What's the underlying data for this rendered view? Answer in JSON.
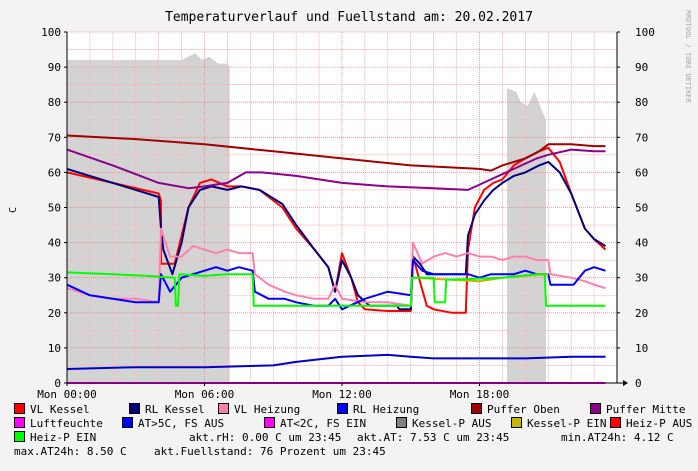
{
  "chart_data": {
    "type": "line",
    "title": "Temperaturverlauf und Fuellstand am: 20.02.2017",
    "ylabel": "C",
    "watermark": "RRDTOOL / TOBI OETIKER",
    "ylim": [
      0,
      100
    ],
    "xlim": [
      0,
      24
    ],
    "y_ticks": [
      "0",
      "10",
      "20",
      "30",
      "40",
      "50",
      "60",
      "70",
      "80",
      "90",
      "100"
    ],
    "x_ticks": [
      {
        "t": 0,
        "label": "Mon 00:00"
      },
      {
        "t": 6,
        "label": "Mon 06:00"
      },
      {
        "t": 12,
        "label": "Mon 12:00"
      },
      {
        "t": 18,
        "label": "Mon 18:00"
      }
    ],
    "grid": true,
    "legend_placement": "bottom",
    "series": [
      {
        "name": "Fuellstand",
        "color": "#d3d3d3",
        "style": "area",
        "points": [
          [
            0,
            92
          ],
          [
            5,
            92
          ],
          [
            5.3,
            93
          ],
          [
            5.6,
            94
          ],
          [
            5.9,
            92
          ],
          [
            6.2,
            93
          ],
          [
            6.6,
            91
          ],
          [
            7.0,
            91
          ],
          [
            7.1,
            90
          ],
          [
            7.1,
            0
          ],
          [
            19.2,
            0
          ],
          [
            19.2,
            84
          ],
          [
            19.6,
            83
          ],
          [
            19.8,
            80
          ],
          [
            20.1,
            79
          ],
          [
            20.4,
            83
          ],
          [
            20.7,
            78
          ],
          [
            20.9,
            75
          ],
          [
            20.9,
            0
          ]
        ]
      },
      {
        "name": "VL Kessel",
        "color": "#ff0000",
        "points": [
          [
            0,
            60
          ],
          [
            2,
            57
          ],
          [
            4,
            54
          ],
          [
            4.1,
            52
          ],
          [
            4.1,
            34
          ],
          [
            4.7,
            34
          ],
          [
            5.0,
            42
          ],
          [
            5.3,
            50
          ],
          [
            5.8,
            57
          ],
          [
            6.3,
            58
          ],
          [
            7.0,
            56
          ],
          [
            7.6,
            56
          ],
          [
            8.4,
            55
          ],
          [
            9.4,
            50
          ],
          [
            10.0,
            44
          ],
          [
            10.8,
            38
          ],
          [
            11.4,
            33
          ],
          [
            11.7,
            26
          ],
          [
            12.0,
            37
          ],
          [
            12.4,
            30
          ],
          [
            12.7,
            23
          ],
          [
            13.0,
            21
          ],
          [
            14.0,
            20.5
          ],
          [
            15.0,
            20.5
          ],
          [
            15.1,
            36
          ],
          [
            15.4,
            29
          ],
          [
            15.7,
            22
          ],
          [
            16.0,
            21
          ],
          [
            16.8,
            20
          ],
          [
            17.4,
            20
          ],
          [
            17.5,
            38
          ],
          [
            17.8,
            50
          ],
          [
            18.2,
            55
          ],
          [
            18.6,
            57
          ],
          [
            19.0,
            58
          ],
          [
            19.5,
            62
          ],
          [
            20.0,
            64
          ],
          [
            20.6,
            66
          ],
          [
            21.0,
            67
          ],
          [
            21.5,
            63
          ],
          [
            22.0,
            54
          ],
          [
            22.6,
            44
          ],
          [
            23.0,
            41
          ],
          [
            23.5,
            38
          ]
        ]
      },
      {
        "name": "RL Kessel",
        "color": "#00007f",
        "points": [
          [
            0,
            61
          ],
          [
            2,
            57
          ],
          [
            4,
            53
          ],
          [
            4.1,
            44
          ],
          [
            4.2,
            38
          ],
          [
            4.6,
            31
          ],
          [
            5.0,
            40
          ],
          [
            5.3,
            50
          ],
          [
            5.8,
            55
          ],
          [
            6.3,
            56
          ],
          [
            7.0,
            55
          ],
          [
            7.6,
            56
          ],
          [
            8.4,
            55
          ],
          [
            9.4,
            51
          ],
          [
            10.0,
            45
          ],
          [
            10.8,
            38
          ],
          [
            11.4,
            33
          ],
          [
            11.7,
            26
          ],
          [
            12.0,
            35
          ],
          [
            12.4,
            30
          ],
          [
            12.7,
            25
          ],
          [
            13.2,
            22
          ],
          [
            14.0,
            22
          ],
          [
            14.4,
            22
          ],
          [
            14.5,
            21
          ],
          [
            15.0,
            21
          ],
          [
            15.1,
            36
          ],
          [
            15.4,
            34
          ],
          [
            15.7,
            31
          ],
          [
            16.0,
            31
          ],
          [
            16.8,
            31
          ],
          [
            17.4,
            31
          ],
          [
            17.5,
            42
          ],
          [
            17.8,
            48
          ],
          [
            18.2,
            52
          ],
          [
            18.6,
            55
          ],
          [
            19.0,
            57
          ],
          [
            19.5,
            59
          ],
          [
            20.0,
            60
          ],
          [
            20.6,
            62
          ],
          [
            21.0,
            63
          ],
          [
            21.5,
            60
          ],
          [
            22.0,
            54
          ],
          [
            22.6,
            44
          ],
          [
            23.0,
            41
          ],
          [
            23.5,
            39
          ]
        ]
      },
      {
        "name": "VL Heizung",
        "color": "#ff7fae",
        "points": [
          [
            0,
            27
          ],
          [
            1,
            25
          ],
          [
            2,
            24
          ],
          [
            3,
            24
          ],
          [
            4.0,
            23
          ],
          [
            4.1,
            44
          ],
          [
            4.5,
            36
          ],
          [
            5.0,
            36
          ],
          [
            5.5,
            39
          ],
          [
            6.0,
            38
          ],
          [
            6.5,
            37
          ],
          [
            7.0,
            38
          ],
          [
            7.5,
            37
          ],
          [
            8.1,
            37
          ],
          [
            8.2,
            31
          ],
          [
            8.8,
            28
          ],
          [
            9.5,
            26
          ],
          [
            10.0,
            25
          ],
          [
            10.8,
            24
          ],
          [
            11.4,
            24
          ],
          [
            11.7,
            28
          ],
          [
            12.0,
            24
          ],
          [
            13.0,
            23
          ],
          [
            14.0,
            23
          ],
          [
            15.0,
            22
          ],
          [
            15.1,
            40
          ],
          [
            15.5,
            34
          ],
          [
            16.0,
            36
          ],
          [
            16.5,
            37
          ],
          [
            17.0,
            36
          ],
          [
            17.5,
            37
          ],
          [
            18.0,
            36
          ],
          [
            18.5,
            36
          ],
          [
            19.0,
            35
          ],
          [
            19.5,
            36
          ],
          [
            20.0,
            36
          ],
          [
            20.5,
            35
          ],
          [
            21.0,
            35
          ],
          [
            21.1,
            31
          ],
          [
            22.0,
            30
          ],
          [
            22.6,
            29
          ],
          [
            23.0,
            28
          ],
          [
            23.5,
            27
          ]
        ]
      },
      {
        "name": "RL Heizung",
        "color": "#0000ff",
        "points": [
          [
            0,
            28
          ],
          [
            1,
            25
          ],
          [
            2,
            24
          ],
          [
            3,
            23
          ],
          [
            4.0,
            23
          ],
          [
            4.1,
            31
          ],
          [
            4.5,
            26
          ],
          [
            5.0,
            30
          ],
          [
            5.5,
            31
          ],
          [
            6.0,
            32
          ],
          [
            6.5,
            33
          ],
          [
            7.0,
            32
          ],
          [
            7.5,
            33
          ],
          [
            8.1,
            32
          ],
          [
            8.2,
            26
          ],
          [
            8.8,
            24
          ],
          [
            9.5,
            24
          ],
          [
            10.0,
            23
          ],
          [
            10.8,
            22
          ],
          [
            11.4,
            22
          ],
          [
            11.7,
            24
          ],
          [
            12.0,
            21
          ],
          [
            13.0,
            24
          ],
          [
            14.0,
            26
          ],
          [
            15.0,
            25
          ],
          [
            15.1,
            35
          ],
          [
            15.5,
            32
          ],
          [
            16.0,
            31
          ],
          [
            16.5,
            31
          ],
          [
            17.0,
            31
          ],
          [
            17.5,
            31
          ],
          [
            18.0,
            30
          ],
          [
            18.5,
            31
          ],
          [
            19.0,
            31
          ],
          [
            19.5,
            31
          ],
          [
            20.0,
            32
          ],
          [
            20.5,
            31
          ],
          [
            21.0,
            31
          ],
          [
            21.1,
            28
          ],
          [
            21.6,
            28
          ],
          [
            22.1,
            28
          ],
          [
            22.6,
            32
          ],
          [
            23.0,
            33
          ],
          [
            23.5,
            32
          ]
        ]
      },
      {
        "name": "Puffer Oben",
        "color": "#a00000",
        "points": [
          [
            0,
            70.5
          ],
          [
            3,
            69.5
          ],
          [
            6,
            68
          ],
          [
            9,
            66
          ],
          [
            12,
            64
          ],
          [
            15,
            62
          ],
          [
            18,
            61
          ],
          [
            18.5,
            60.5
          ],
          [
            19,
            62
          ],
          [
            20,
            64
          ],
          [
            20.6,
            66
          ],
          [
            21,
            68
          ],
          [
            22,
            68
          ],
          [
            23,
            67.5
          ],
          [
            23.5,
            67.5
          ]
        ]
      },
      {
        "name": "Puffer Mitte",
        "color": "#8b008b",
        "points": [
          [
            0,
            66.5
          ],
          [
            2,
            62
          ],
          [
            4,
            57
          ],
          [
            5.3,
            55.5
          ],
          [
            6.0,
            56
          ],
          [
            7.0,
            57
          ],
          [
            7.8,
            60
          ],
          [
            8.5,
            60
          ],
          [
            10,
            59
          ],
          [
            12,
            57
          ],
          [
            14,
            56
          ],
          [
            16,
            55.5
          ],
          [
            17.5,
            55
          ],
          [
            18.5,
            58
          ],
          [
            19.5,
            61
          ],
          [
            20.5,
            64
          ],
          [
            21,
            65
          ],
          [
            22,
            66.5
          ],
          [
            23,
            66
          ],
          [
            23.5,
            66
          ]
        ]
      },
      {
        "name": "Luftfeuchte",
        "color": "#ff00ff",
        "points": [
          [
            0,
            0
          ],
          [
            23.5,
            0
          ]
        ]
      },
      {
        "name": "AT>5C, FS AUS",
        "color": "#0000cc",
        "points": [
          [
            0,
            4
          ],
          [
            3,
            4.5
          ],
          [
            6,
            4.5
          ],
          [
            9,
            5
          ],
          [
            10,
            6
          ],
          [
            12,
            7.5
          ],
          [
            14,
            8
          ],
          [
            15,
            7.5
          ],
          [
            16,
            7
          ],
          [
            18,
            7
          ],
          [
            20,
            7
          ],
          [
            22,
            7.5
          ],
          [
            23.5,
            7.5
          ]
        ]
      },
      {
        "name": "AT<2C, FS EIN",
        "color": "#ff00ff",
        "points": []
      },
      {
        "name": "Kessel-P AUS",
        "color": "#808080",
        "points": []
      },
      {
        "name": "Kessel-P EIN",
        "color": "#c8b400",
        "points": [
          [
            15.2,
            30
          ],
          [
            16.5,
            29.5
          ],
          [
            18,
            29
          ],
          [
            19,
            30
          ],
          [
            20,
            30.5
          ],
          [
            21,
            31
          ]
        ]
      },
      {
        "name": "Heiz-P AUS",
        "color": "#ff0000",
        "points": []
      },
      {
        "name": "Heiz-P EIN",
        "color": "#00ff00",
        "points": [
          [
            0,
            31.5
          ],
          [
            2,
            31
          ],
          [
            3.5,
            30.5
          ],
          [
            4.7,
            30
          ],
          [
            4.75,
            22
          ],
          [
            4.85,
            22
          ],
          [
            4.9,
            31
          ],
          [
            6,
            30.5
          ],
          [
            7,
            31
          ],
          [
            8.1,
            31
          ],
          [
            8.15,
            22
          ],
          [
            15.0,
            22
          ],
          [
            15.05,
            30
          ],
          [
            15.5,
            30
          ],
          [
            16.0,
            30
          ],
          [
            16.05,
            23
          ],
          [
            16.5,
            23
          ],
          [
            16.55,
            29.5
          ],
          [
            17,
            29.5
          ],
          [
            19,
            30
          ],
          [
            20.5,
            31
          ],
          [
            20.85,
            31
          ],
          [
            20.9,
            22
          ],
          [
            23.5,
            22
          ]
        ]
      }
    ]
  },
  "legend": [
    {
      "label": "VL Kessel",
      "color": "#ff0000"
    },
    {
      "label": "RL Kessel",
      "color": "#00007f"
    },
    {
      "label": "VL Heizung",
      "color": "#ff7fae"
    },
    {
      "label": "RL Heizung",
      "color": "#0000ff"
    },
    {
      "label": "Puffer Oben",
      "color": "#a00000"
    },
    {
      "label": "Puffer Mitte",
      "color": "#8b008b"
    },
    {
      "label": "Luftfeuchte",
      "color": "#ff00ff"
    },
    {
      "label": "AT>5C, FS AUS",
      "color": "#0000ff"
    },
    {
      "label": "AT<2C, FS EIN",
      "color": "#ff00ff"
    },
    {
      "label": "Kessel-P AUS",
      "color": "#808080"
    },
    {
      "label": "Kessel-P EIN",
      "color": "#c8b400"
    },
    {
      "label": "Heiz-P AUS",
      "color": "#ff0000"
    },
    {
      "label": "Heiz-P EIN",
      "color": "#00ff00"
    }
  ],
  "stats": {
    "akt_rh": "akt.rH: 0.00 C um 23:45",
    "akt_at": "akt.AT: 7.53 C um 23:45",
    "min_at": "min.AT24h: 4.12 C",
    "max_at": "max.AT24h: 8.50 C",
    "fuellstand": "akt.Fuellstand:   76 Prozent um 23:45"
  }
}
